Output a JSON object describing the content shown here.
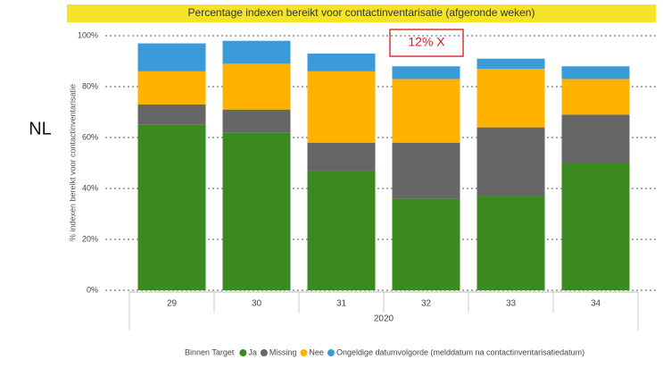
{
  "chart_data": {
    "type": "stacked_bar",
    "title": "Percentage indexen bereikt voor contactinventarisatie (afgeronde weken)",
    "y_label": "% indexen bereikt voor contactinventarisatie",
    "x_label": "2020",
    "legend_title": "Binnen Target",
    "annotations": [
      "NL",
      "12% X"
    ],
    "categories": [
      "29",
      "30",
      "31",
      "32",
      "33",
      "34"
    ],
    "series": [
      {
        "name": "Ja",
        "color": "#3a8a1f",
        "values": [
          65,
          62,
          47,
          36,
          37,
          50
        ]
      },
      {
        "name": "Missing",
        "color": "#666666",
        "values": [
          8,
          9,
          11,
          22,
          27,
          19
        ]
      },
      {
        "name": "Nee",
        "color": "#ffb300",
        "values": [
          13,
          18,
          28,
          25,
          23,
          14
        ]
      },
      {
        "name": "Ongeldige datumvolgorde (melddatum na contactinventarisatiedatum)",
        "color": "#3b9bd8",
        "values": [
          11,
          9,
          7,
          5,
          4,
          5
        ]
      }
    ],
    "ylim": [
      0,
      100
    ],
    "yticks": [
      {
        "value": 0,
        "label": "0%"
      },
      {
        "value": 20,
        "label": "20%"
      },
      {
        "value": 40,
        "label": "40%"
      },
      {
        "value": 60,
        "label": "60%"
      },
      {
        "value": 80,
        "label": "80%"
      },
      {
        "value": 100,
        "label": "100%"
      }
    ],
    "grid": true
  }
}
